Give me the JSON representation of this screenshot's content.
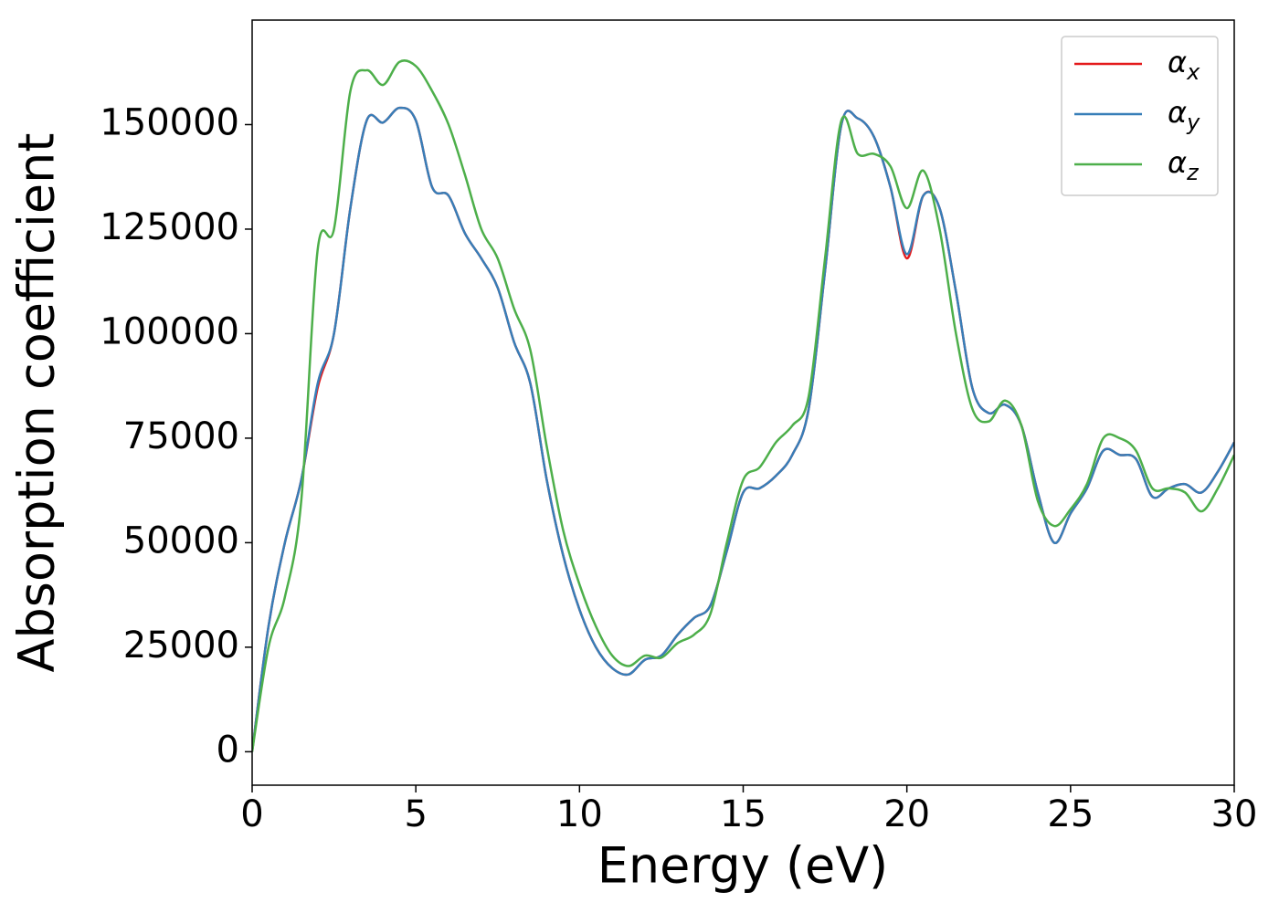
{
  "chart_data": {
    "type": "line",
    "xlabel": "Energy (eV)",
    "ylabel": "Absorption coefficient",
    "x": [
      0,
      0.5,
      1,
      1.5,
      2,
      2.5,
      3,
      3.5,
      4,
      4.5,
      5,
      5.5,
      6,
      6.5,
      7,
      7.5,
      8,
      8.5,
      9,
      9.5,
      10,
      10.5,
      11,
      11.5,
      12,
      12.5,
      13,
      13.5,
      14,
      14.5,
      15,
      15.5,
      16,
      16.5,
      17,
      17.5,
      18,
      18.5,
      19,
      19.5,
      20,
      20.5,
      21,
      21.5,
      22,
      22.5,
      23,
      23.5,
      24,
      24.5,
      25,
      25.5,
      26,
      26.5,
      27,
      27.5,
      28,
      28.5,
      29,
      29.5,
      30
    ],
    "series": [
      {
        "name": "αx",
        "color": "#e41a1c",
        "values": [
          0,
          30000,
          50000,
          65000,
          87000,
          100000,
          130000,
          151000,
          150500,
          154000,
          151000,
          135000,
          133000,
          124000,
          118000,
          111000,
          98000,
          88000,
          65000,
          47000,
          34000,
          25000,
          20000,
          18500,
          22000,
          23000,
          28000,
          32000,
          35000,
          48000,
          62000,
          63000,
          66000,
          71000,
          82000,
          115000,
          150000,
          151500,
          147000,
          135000,
          118000,
          133000,
          130000,
          110000,
          87000,
          81000,
          83000,
          78000,
          62000,
          50000,
          57000,
          63000,
          72000,
          71000,
          70000,
          61000,
          63000,
          64000,
          62000,
          67000,
          74000
        ]
      },
      {
        "name": "αy",
        "color": "#377eb8",
        "values": [
          0,
          30000,
          50000,
          65000,
          88000,
          100000,
          130000,
          151000,
          150500,
          154000,
          151000,
          135000,
          133000,
          124000,
          118000,
          111000,
          98000,
          88000,
          65000,
          47000,
          34000,
          25000,
          20000,
          18500,
          22000,
          23000,
          28000,
          32000,
          35000,
          48000,
          62000,
          63000,
          66000,
          71000,
          82000,
          115000,
          150000,
          151500,
          147000,
          135000,
          119000,
          133000,
          130000,
          110000,
          87000,
          81000,
          83000,
          78000,
          62000,
          50000,
          57000,
          63000,
          72000,
          71000,
          70000,
          61000,
          63000,
          64000,
          62000,
          67000,
          74000
        ]
      },
      {
        "name": "αz",
        "color": "#4daf4a",
        "values": [
          0,
          25000,
          37000,
          60000,
          120000,
          125000,
          158000,
          163000,
          159500,
          165000,
          164000,
          158000,
          150000,
          138000,
          125000,
          118000,
          106000,
          96000,
          73000,
          53000,
          40000,
          30000,
          23000,
          20500,
          23000,
          22500,
          26000,
          28000,
          33000,
          50000,
          65000,
          68000,
          74000,
          78000,
          85000,
          118000,
          151000,
          143000,
          143000,
          140000,
          130000,
          139000,
          125000,
          100000,
          82000,
          79000,
          84000,
          78000,
          60000,
          54000,
          58000,
          64000,
          75000,
          75000,
          72000,
          63000,
          63000,
          62000,
          57500,
          63000,
          71000
        ]
      }
    ],
    "xlim": [
      0,
      30
    ],
    "xticks": [
      0,
      5,
      10,
      15,
      20,
      25,
      30
    ],
    "ylim": [
      -8000,
      175000
    ],
    "yticks": [
      0,
      25000,
      50000,
      75000,
      100000,
      125000,
      150000
    ],
    "legend": "upper right"
  }
}
